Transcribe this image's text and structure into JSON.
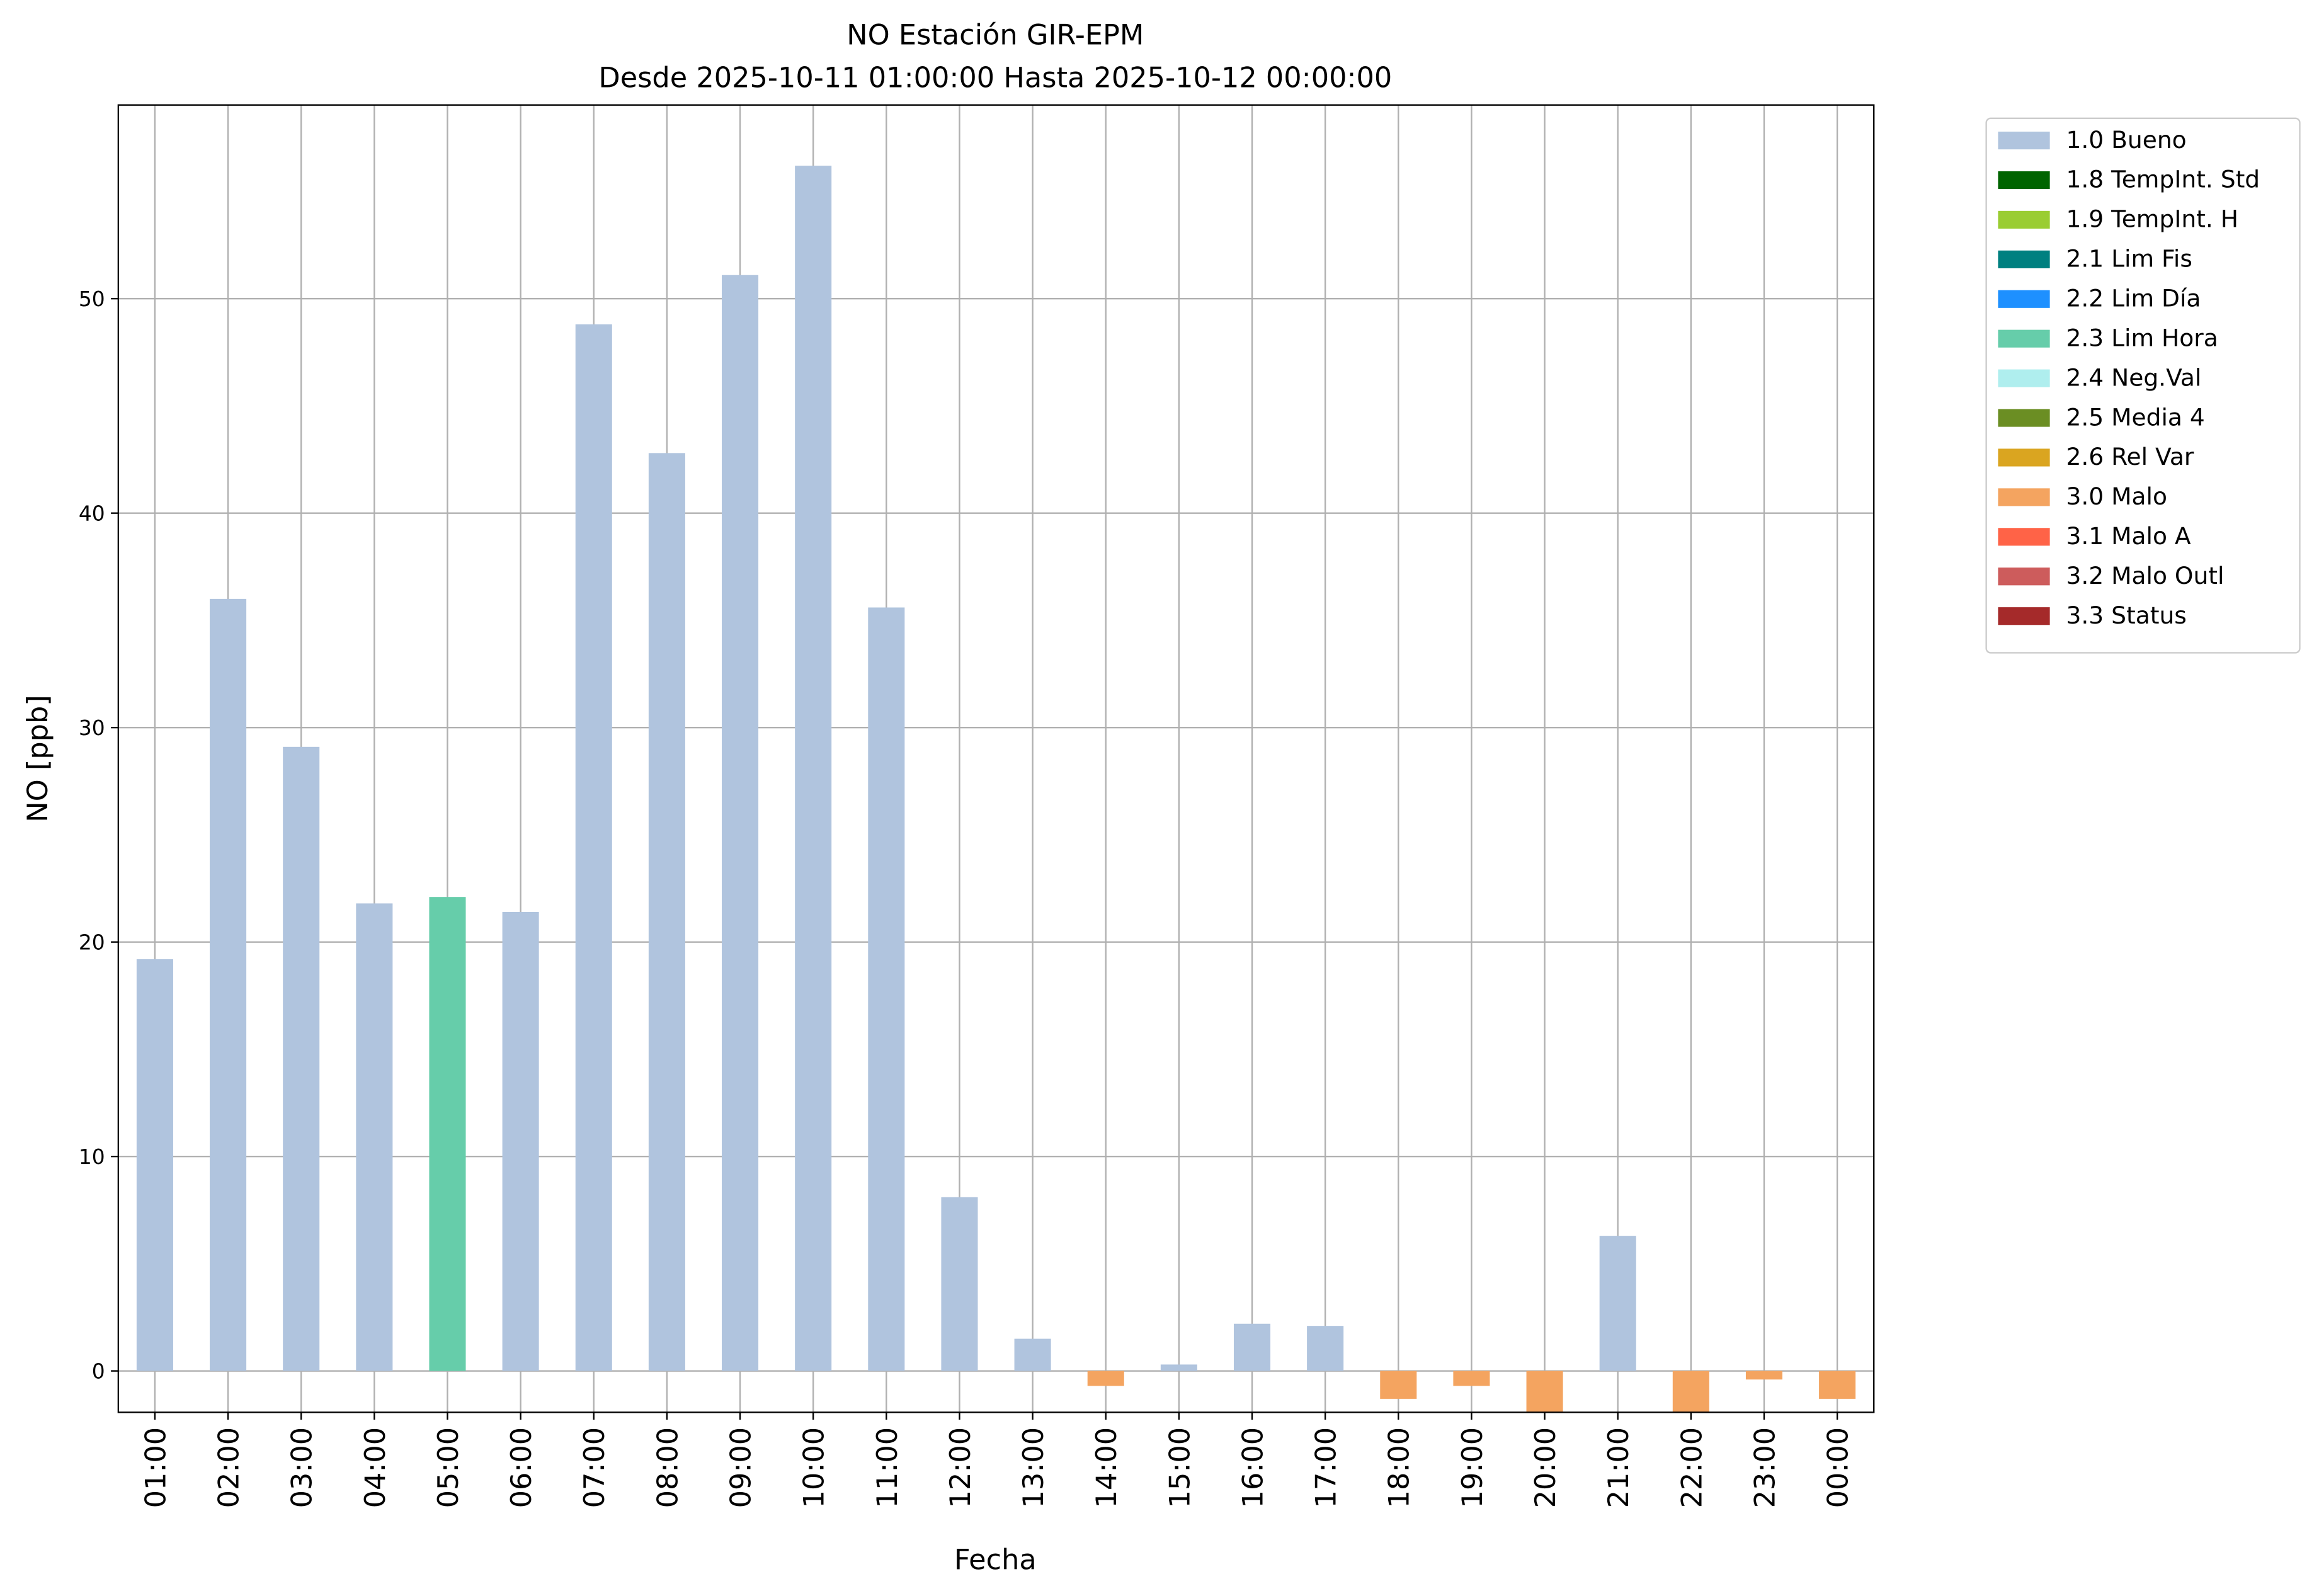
{
  "chart_data": {
    "type": "bar",
    "title": "NO Estación GIR-EPM",
    "subtitle": "Desde 2025-10-11 01:00:00 Hasta 2025-10-12 00:00:00",
    "xlabel": "Fecha",
    "ylabel": "NO [ppb]",
    "categories": [
      "01:00",
      "02:00",
      "03:00",
      "04:00",
      "05:00",
      "06:00",
      "07:00",
      "08:00",
      "09:00",
      "10:00",
      "11:00",
      "12:00",
      "13:00",
      "14:00",
      "15:00",
      "16:00",
      "17:00",
      "18:00",
      "19:00",
      "20:00",
      "21:00",
      "22:00",
      "23:00",
      "00:00"
    ],
    "series": [
      {
        "name": "1.0 Bueno",
        "color": "#b0c4de",
        "values": [
          19.2,
          36.0,
          29.1,
          21.8,
          null,
          21.4,
          48.8,
          42.8,
          51.1,
          56.2,
          35.6,
          8.1,
          1.5,
          null,
          0.3,
          2.2,
          2.1,
          null,
          null,
          null,
          6.3,
          null,
          null,
          null
        ]
      },
      {
        "name": "1.8 TempInt. Std",
        "color": "#006400",
        "values": [
          null,
          null,
          null,
          null,
          null,
          null,
          null,
          null,
          null,
          null,
          null,
          null,
          null,
          null,
          null,
          null,
          null,
          null,
          null,
          null,
          null,
          null,
          null,
          null
        ]
      },
      {
        "name": "1.9 TempInt. H",
        "color": "#9acd32",
        "values": [
          null,
          null,
          null,
          null,
          null,
          null,
          null,
          null,
          null,
          null,
          null,
          null,
          null,
          null,
          null,
          null,
          null,
          null,
          null,
          null,
          null,
          null,
          null,
          null
        ]
      },
      {
        "name": "2.1 Lim Fis",
        "color": "#008080",
        "values": [
          null,
          null,
          null,
          null,
          null,
          null,
          null,
          null,
          null,
          null,
          null,
          null,
          null,
          null,
          null,
          null,
          null,
          null,
          null,
          null,
          null,
          null,
          null,
          null
        ]
      },
      {
        "name": "2.2 Lim Día",
        "color": "#1e90ff",
        "values": [
          null,
          null,
          null,
          null,
          null,
          null,
          null,
          null,
          null,
          null,
          null,
          null,
          null,
          null,
          null,
          null,
          null,
          null,
          null,
          null,
          null,
          null,
          null,
          null
        ]
      },
      {
        "name": "2.3 Lim Hora",
        "color": "#66cdaa",
        "values": [
          null,
          null,
          null,
          null,
          22.1,
          null,
          null,
          null,
          null,
          null,
          null,
          null,
          null,
          null,
          null,
          null,
          null,
          null,
          null,
          null,
          null,
          null,
          null,
          null
        ]
      },
      {
        "name": "2.4 Neg.Val",
        "color": "#afeeee",
        "values": [
          null,
          null,
          null,
          null,
          null,
          null,
          null,
          null,
          null,
          null,
          null,
          null,
          null,
          null,
          null,
          null,
          null,
          null,
          null,
          null,
          null,
          null,
          null,
          null
        ]
      },
      {
        "name": "2.5 Media 4",
        "color": "#6b8e23",
        "values": [
          null,
          null,
          null,
          null,
          null,
          null,
          null,
          null,
          null,
          null,
          null,
          null,
          null,
          null,
          null,
          null,
          null,
          null,
          null,
          null,
          null,
          null,
          null,
          null
        ]
      },
      {
        "name": "2.6 Rel Var",
        "color": "#daa520",
        "values": [
          null,
          null,
          null,
          null,
          null,
          null,
          null,
          null,
          null,
          null,
          null,
          null,
          null,
          null,
          null,
          null,
          null,
          null,
          null,
          null,
          null,
          null,
          null,
          null
        ]
      },
      {
        "name": "3.0 Malo",
        "color": "#f4a460",
        "values": [
          null,
          null,
          null,
          null,
          null,
          null,
          null,
          null,
          null,
          null,
          null,
          null,
          null,
          -0.7,
          null,
          null,
          null,
          -1.3,
          -0.7,
          -2.5,
          null,
          -2.5,
          -0.4,
          -1.3
        ]
      },
      {
        "name": "3.1 Malo A",
        "color": "#ff6347",
        "values": [
          null,
          null,
          null,
          null,
          null,
          null,
          null,
          null,
          null,
          null,
          null,
          null,
          null,
          null,
          null,
          null,
          null,
          null,
          null,
          null,
          null,
          null,
          null,
          null
        ]
      },
      {
        "name": "3.2 Malo Outl",
        "color": "#cd5c5c",
        "values": [
          null,
          null,
          null,
          null,
          null,
          null,
          null,
          null,
          null,
          null,
          null,
          null,
          null,
          null,
          null,
          null,
          null,
          null,
          null,
          null,
          null,
          null,
          null,
          null
        ]
      },
      {
        "name": "3.3 Status",
        "color": "#a52a2a",
        "values": [
          null,
          null,
          null,
          null,
          null,
          null,
          null,
          null,
          null,
          null,
          null,
          null,
          null,
          null,
          null,
          null,
          null,
          null,
          null,
          null,
          null,
          null,
          null,
          null
        ]
      }
    ],
    "ylim": [
      -1.93,
      59.03
    ],
    "yticks": [
      0,
      10,
      20,
      30,
      40,
      50
    ],
    "grid": true,
    "legend": "outside-upper-right"
  }
}
